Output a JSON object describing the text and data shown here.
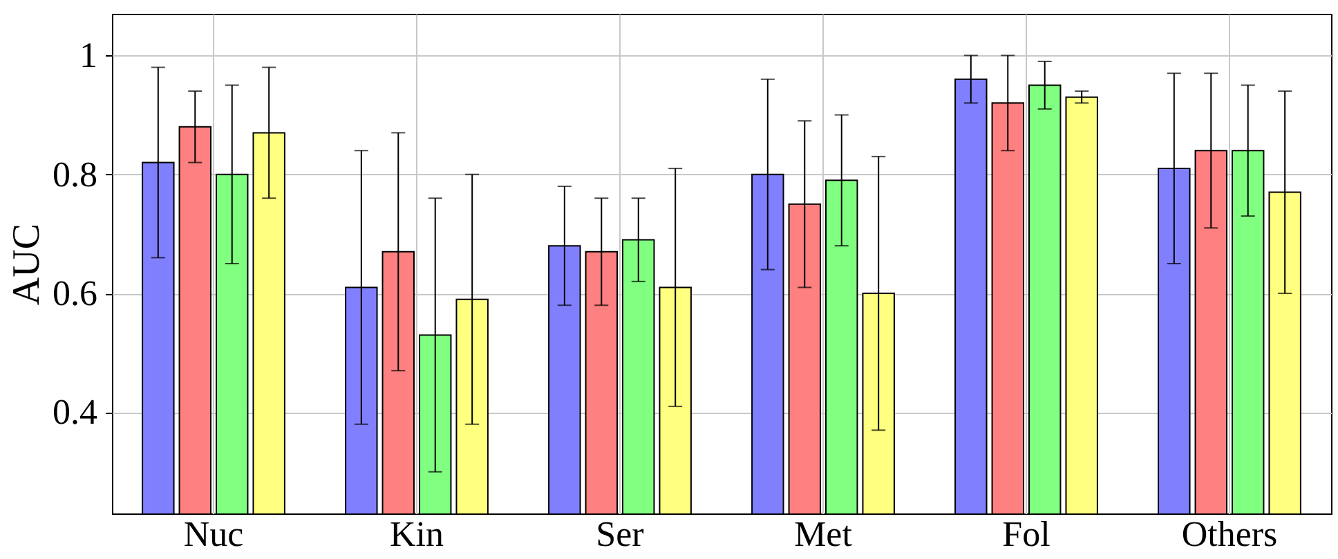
{
  "chart_data": {
    "type": "bar",
    "ylabel": "AUC",
    "categories": [
      "Nuc",
      "Kin",
      "Ser",
      "Met",
      "Fol",
      "Others"
    ],
    "series": [
      {
        "color": "#8080ff",
        "values": [
          0.82,
          0.61,
          0.68,
          0.8,
          0.96,
          0.81
        ],
        "errors": [
          0.16,
          0.23,
          0.1,
          0.16,
          0.04,
          0.16
        ]
      },
      {
        "color": "#ff8080",
        "values": [
          0.88,
          0.67,
          0.67,
          0.75,
          0.92,
          0.84
        ],
        "errors": [
          0.06,
          0.2,
          0.09,
          0.14,
          0.08,
          0.13
        ]
      },
      {
        "color": "#80ff80",
        "values": [
          0.8,
          0.53,
          0.69,
          0.79,
          0.95,
          0.84
        ],
        "errors": [
          0.15,
          0.23,
          0.07,
          0.11,
          0.04,
          0.11
        ]
      },
      {
        "color": "#ffff80",
        "values": [
          0.87,
          0.59,
          0.61,
          0.6,
          0.93,
          0.77
        ],
        "errors": [
          0.11,
          0.21,
          0.2,
          0.23,
          0.01,
          0.17
        ]
      }
    ],
    "ylim": [
      0.23,
      1.07
    ],
    "yticks": [
      0.4,
      0.6,
      0.8,
      1
    ],
    "grid": true
  }
}
